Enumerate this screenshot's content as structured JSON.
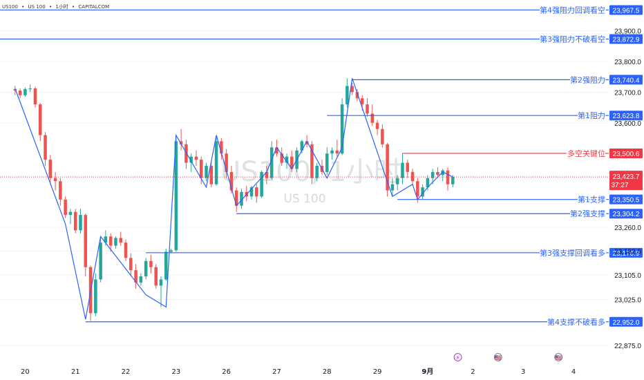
{
  "header": {
    "symbol": "US100",
    "name": "US 100",
    "interval": "1小时",
    "broker": "CAPITALCOM",
    "separator": "•"
  },
  "watermark": {
    "main": "US100, 1小时",
    "sub": "US 100"
  },
  "colors": {
    "up": "#26a69a",
    "down": "#ef5350",
    "trend": "#2962ff",
    "level": "#2962ff",
    "key_level": "#f23645",
    "current": "#f23645",
    "axis_text": "#131722",
    "label_bg": "#2962ff"
  },
  "chart_data": {
    "type": "candlestick",
    "title": "",
    "xlabel": "",
    "ylabel": "",
    "ylim": [
      22830,
      24000
    ],
    "y_ticks": [
      {
        "label": "23,900.0",
        "value": 23900
      },
      {
        "label": "23,800.0",
        "value": 23800
      },
      {
        "label": "23,700.0",
        "value": 23700
      },
      {
        "label": "23,600.0",
        "value": 23600
      },
      {
        "label": "23,260.0",
        "value": 23260
      },
      {
        "label": "23,182.0",
        "value": 23182
      },
      {
        "label": "23,105.0",
        "value": 23105
      },
      {
        "label": "23,025.0",
        "value": 23025
      },
      {
        "label": "22,875.0",
        "value": 22875
      }
    ],
    "x_ticks": [
      {
        "label": "20",
        "index": 2
      },
      {
        "label": "21",
        "index": 12
      },
      {
        "label": "22",
        "index": 22
      },
      {
        "label": "23",
        "index": 32
      },
      {
        "label": "26",
        "index": 42
      },
      {
        "label": "27",
        "index": 52
      },
      {
        "label": "28",
        "index": 62
      },
      {
        "label": "29",
        "index": 72
      },
      {
        "label": "9月",
        "index": 82,
        "bold": true
      },
      {
        "label": "2",
        "index": 91
      },
      {
        "label": "3",
        "index": 101
      },
      {
        "label": "4",
        "index": 111
      }
    ],
    "x_range": [
      -3,
      118
    ],
    "ohlc": [
      [
        23710,
        23720,
        23690,
        23705
      ],
      [
        23705,
        23712,
        23680,
        23690
      ],
      [
        23690,
        23715,
        23685,
        23710
      ],
      [
        23710,
        23725,
        23700,
        23712
      ],
      [
        23712,
        23718,
        23650,
        23660
      ],
      [
        23660,
        23665,
        23540,
        23560
      ],
      [
        23560,
        23570,
        23460,
        23480
      ],
      [
        23480,
        23495,
        23400,
        23420
      ],
      [
        23420,
        23440,
        23380,
        23410
      ],
      [
        23410,
        23420,
        23330,
        23350
      ],
      [
        23350,
        23360,
        23290,
        23300
      ],
      [
        23300,
        23320,
        23270,
        23310
      ],
      [
        23310,
        23320,
        23240,
        23250
      ],
      [
        23250,
        23320,
        23240,
        23300
      ],
      [
        23300,
        23305,
        23100,
        23130
      ],
      [
        23130,
        23135,
        22955,
        22980
      ],
      [
        22980,
        23110,
        22970,
        23090
      ],
      [
        23090,
        23230,
        23080,
        23210
      ],
      [
        23210,
        23250,
        23200,
        23230
      ],
      [
        23230,
        23240,
        23180,
        23200
      ],
      [
        23200,
        23230,
        23190,
        23225
      ],
      [
        23225,
        23245,
        23200,
        23210
      ],
      [
        23210,
        23220,
        23150,
        23160
      ],
      [
        23160,
        23175,
        23100,
        23120
      ],
      [
        23120,
        23140,
        23060,
        23080
      ],
      [
        23080,
        23110,
        23070,
        23100
      ],
      [
        23100,
        23160,
        23090,
        23150
      ],
      [
        23150,
        23170,
        23110,
        23130
      ],
      [
        23130,
        23140,
        23060,
        23070
      ],
      [
        23070,
        23100,
        23000,
        23090
      ],
      [
        23090,
        23190,
        23085,
        23180
      ],
      [
        23180,
        23190,
        23175,
        23185
      ],
      [
        23185,
        23560,
        23180,
        23540
      ],
      [
        23540,
        23580,
        23510,
        23530
      ],
      [
        23530,
        23545,
        23450,
        23470
      ],
      [
        23470,
        23500,
        23440,
        23490
      ],
      [
        23490,
        23510,
        23460,
        23480
      ],
      [
        23480,
        23490,
        23400,
        23420
      ],
      [
        23420,
        23470,
        23410,
        23460
      ],
      [
        23460,
        23475,
        23390,
        23400
      ],
      [
        23400,
        23560,
        23395,
        23540
      ],
      [
        23540,
        23550,
        23480,
        23500
      ],
      [
        23500,
        23515,
        23420,
        23440
      ],
      [
        23440,
        23460,
        23370,
        23380
      ],
      [
        23380,
        23390,
        23310,
        23330
      ],
      [
        23330,
        23385,
        23320,
        23375
      ],
      [
        23375,
        23395,
        23345,
        23360
      ],
      [
        23360,
        23395,
        23350,
        23390
      ],
      [
        23390,
        23400,
        23340,
        23360
      ],
      [
        23360,
        23445,
        23355,
        23440
      ],
      [
        23440,
        23460,
        23400,
        23420
      ],
      [
        23420,
        23540,
        23415,
        23520
      ],
      [
        23520,
        23545,
        23490,
        23500
      ],
      [
        23500,
        23520,
        23460,
        23470
      ],
      [
        23470,
        23500,
        23450,
        23490
      ],
      [
        23490,
        23510,
        23440,
        23450
      ],
      [
        23450,
        23520,
        23440,
        23510
      ],
      [
        23510,
        23545,
        23500,
        23540
      ],
      [
        23540,
        23560,
        23520,
        23530
      ],
      [
        23530,
        23540,
        23400,
        23420
      ],
      [
        23420,
        23470,
        23410,
        23460
      ],
      [
        23460,
        23480,
        23430,
        23440
      ],
      [
        23440,
        23520,
        23430,
        23500
      ],
      [
        23500,
        23520,
        23480,
        23510
      ],
      [
        23510,
        23545,
        23490,
        23500
      ],
      [
        23500,
        23680,
        23495,
        23660
      ],
      [
        23660,
        23745,
        23650,
        23720
      ],
      [
        23720,
        23730,
        23690,
        23700
      ],
      [
        23700,
        23710,
        23670,
        23680
      ],
      [
        23680,
        23690,
        23640,
        23660
      ],
      [
        23660,
        23680,
        23620,
        23630
      ],
      [
        23630,
        23660,
        23590,
        23600
      ],
      [
        23600,
        23610,
        23560,
        23580
      ],
      [
        23580,
        23595,
        23520,
        23530
      ],
      [
        23530,
        23535,
        23360,
        23380
      ],
      [
        23380,
        23420,
        23360,
        23400
      ],
      [
        23400,
        23430,
        23380,
        23420
      ],
      [
        23420,
        23500,
        23400,
        23470
      ],
      [
        23470,
        23480,
        23420,
        23440
      ],
      [
        23440,
        23450,
        23400,
        23410
      ],
      [
        23410,
        23420,
        23340,
        23360
      ],
      [
        23360,
        23400,
        23350,
        23390
      ],
      [
        23390,
        23430,
        23380,
        23420
      ],
      [
        23420,
        23450,
        23400,
        23440
      ],
      [
        23440,
        23455,
        23420,
        23430
      ],
      [
        23430,
        23450,
        23410,
        23445
      ],
      [
        23445,
        23455,
        23380,
        23400
      ],
      [
        23400,
        23430,
        23390,
        23424
      ]
    ],
    "trend_lines": [
      [
        [
          0,
          23712
        ],
        [
          10,
          23270
        ],
        [
          14,
          22960
        ],
        [
          17,
          23230
        ],
        [
          26,
          23040
        ],
        [
          30,
          23000
        ],
        [
          32,
          23560
        ],
        [
          38,
          23390
        ],
        [
          40,
          23560
        ],
        [
          44,
          23330
        ],
        [
          50,
          23440
        ],
        [
          52,
          23520
        ],
        [
          55,
          23450
        ],
        [
          58,
          23540
        ],
        [
          62,
          23420
        ],
        [
          65,
          23520
        ],
        [
          67,
          23745
        ],
        [
          75,
          23360
        ],
        [
          79,
          23400
        ],
        [
          80,
          23350
        ],
        [
          82,
          23390
        ],
        [
          85,
          23440
        ],
        [
          87,
          23424
        ]
      ]
    ],
    "levels": [
      {
        "label": "第4强阻力回调看空",
        "value_label": "23,967.5",
        "value": 23967.5,
        "start_index": -3,
        "kind": "resistance"
      },
      {
        "label": "第3强阻力不破看空",
        "value_label": "23,872.9",
        "value": 23872.9,
        "start_index": -3,
        "kind": "resistance"
      },
      {
        "label": "第2强阻力",
        "value_label": "23,740.4",
        "value": 23740.4,
        "start_index": 67,
        "kind": "resistance"
      },
      {
        "label": "第1阻力",
        "value_label": "23,623.8",
        "value": 23623.8,
        "start_index": 62,
        "kind": "resistance"
      },
      {
        "label": "多空关键位",
        "value_label": "23,500.6",
        "value": 23500.6,
        "start_index": 77,
        "kind": "key"
      },
      {
        "label": "第1支撑",
        "value_label": "23,350.5",
        "value": 23350.5,
        "start_index": 76,
        "kind": "support"
      },
      {
        "label": "第2强支撑",
        "value_label": "23,304.2",
        "value": 23304.2,
        "start_index": 44,
        "kind": "support"
      },
      {
        "label": "第3强支撑回调看多",
        "value_label": "23,176.9",
        "value": 23176.9,
        "start_index": 26,
        "kind": "support"
      },
      {
        "label": "第4支撑不破看多",
        "value_label": "22,952.0",
        "value": 22952.0,
        "start_index": 14,
        "kind": "support"
      }
    ],
    "current_price": {
      "value": 23423.7,
      "value_label": "23,423.7",
      "countdown": "37:27"
    },
    "markers": [
      {
        "index": 88,
        "icon": "lightning-icon",
        "symbol": "⚡"
      },
      {
        "index": 96,
        "icon": "us-flag-icon",
        "symbol": "🇺🇸"
      },
      {
        "index": 108,
        "icon": "us-flag-icon",
        "symbol": "🇺🇸"
      }
    ]
  }
}
